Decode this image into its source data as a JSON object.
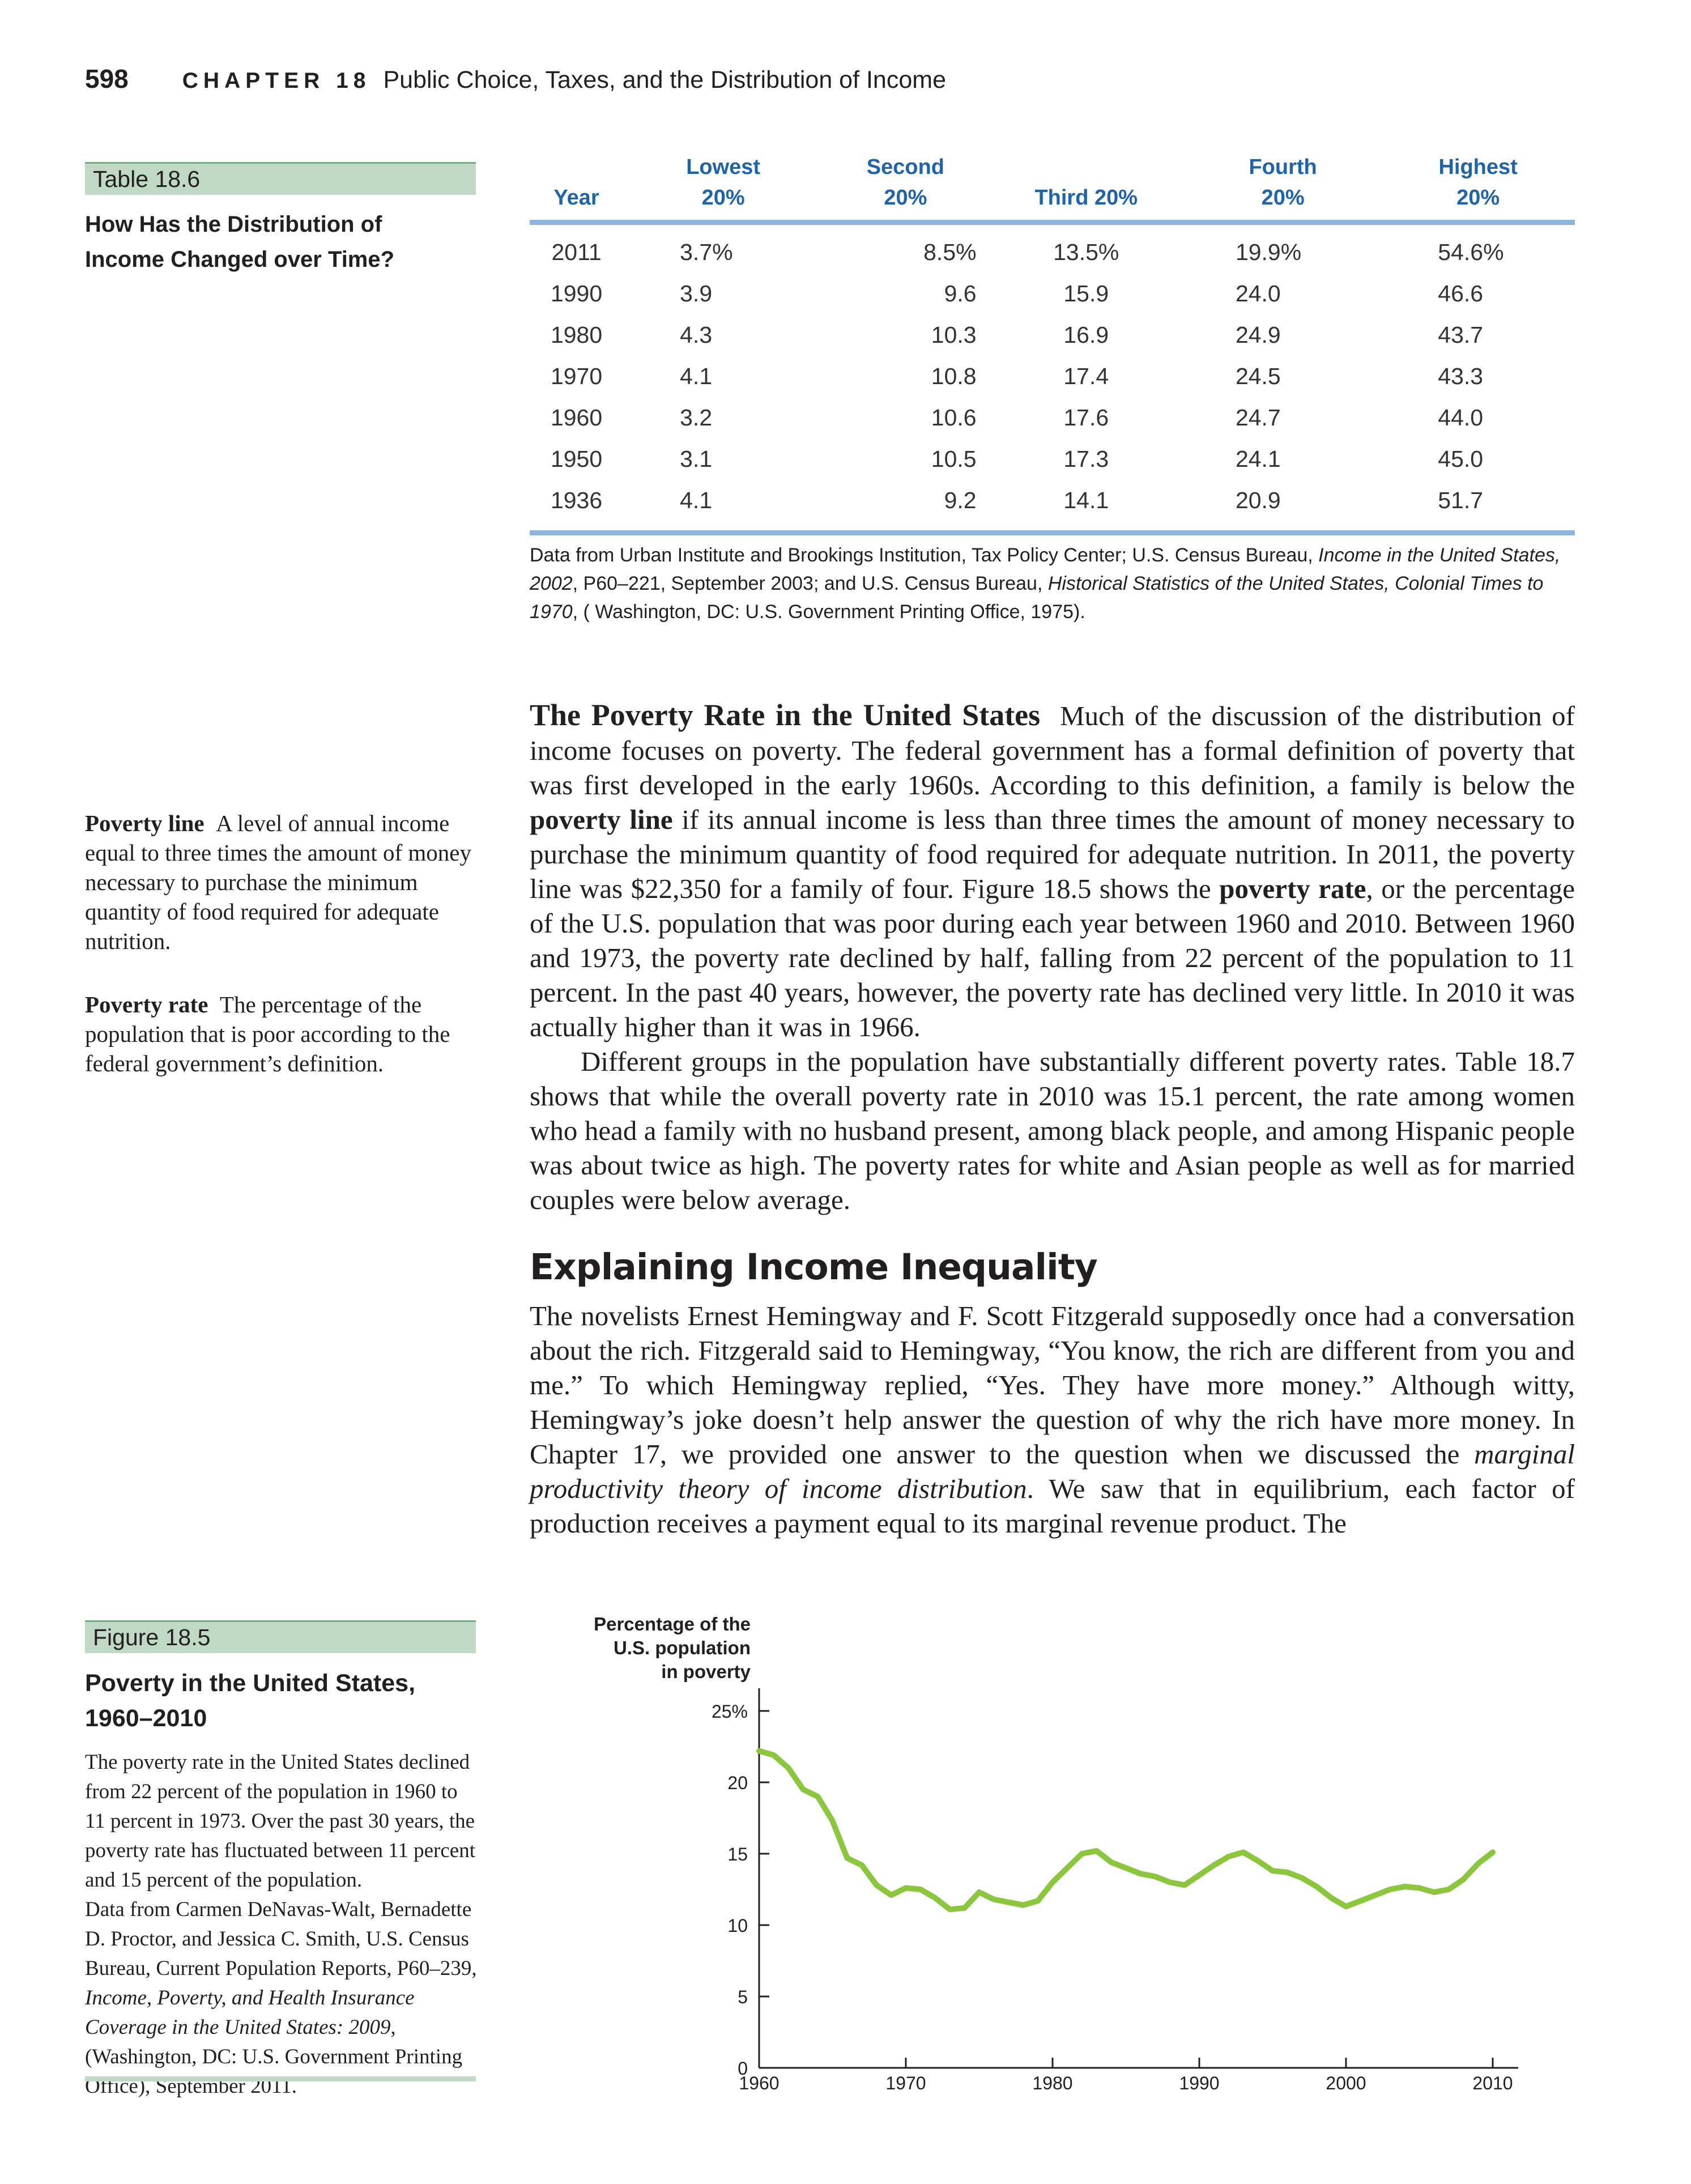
{
  "header": {
    "page_number": "598",
    "chapter_label": "CHAPTER 18",
    "chapter_title": "Public Choice, Taxes, and the Distribution of Income"
  },
  "table": {
    "label": "Table 18.6",
    "title_line1": "How Has the Distribution of",
    "title_line2": "Income Changed over Time?",
    "columns": [
      {
        "line1": "",
        "line2": "Year"
      },
      {
        "line1": "Lowest",
        "line2": "20%"
      },
      {
        "line1": "Second",
        "line2": "20%"
      },
      {
        "line1": "",
        "line2": "Third 20%"
      },
      {
        "line1": "Fourth",
        "line2": "20%"
      },
      {
        "line1": "Highest",
        "line2": "20%"
      }
    ],
    "rows": [
      [
        "2011",
        "3.7%",
        "8.5%",
        "13.5%",
        "19.9%",
        "54.6%"
      ],
      [
        "1990",
        "3.9",
        "9.6",
        "15.9",
        "24.0",
        "46.6"
      ],
      [
        "1980",
        "4.3",
        "10.3",
        "16.9",
        "24.9",
        "43.7"
      ],
      [
        "1970",
        "4.1",
        "10.8",
        "17.4",
        "24.5",
        "43.3"
      ],
      [
        "1960",
        "3.2",
        "10.6",
        "17.6",
        "24.7",
        "44.0"
      ],
      [
        "1950",
        "3.1",
        "10.5",
        "17.3",
        "24.1",
        "45.0"
      ],
      [
        "1936",
        "4.1",
        "9.2",
        "14.1",
        "20.9",
        "51.7"
      ]
    ],
    "source": {
      "p1": "Data from Urban Institute and Brookings Institution, Tax Policy Center; U.S. Census Bureau, ",
      "i1": "Income in the United States, 2002",
      "p2": ", P60–221, September 2003; and U.S. Census Bureau, ",
      "i2": "Historical Statistics of the United States, Colonial Times to 1970",
      "p3": ", ( Washington, DC: U.S. Government Printing Office, 1975)."
    }
  },
  "definitions": {
    "poverty_line_term": "Poverty line",
    "poverty_line_text": "A level of annual income equal to three times the amount of money necessary to purchase the minimum quantity of food required for adequate nutrition.",
    "poverty_rate_term": "Poverty rate",
    "poverty_rate_text": "The percentage of the population that is poor according to the federal government’s definition."
  },
  "poverty_section": {
    "heading": "The Poverty Rate in the United States",
    "p1_a": "Much of the discussion of the distribution of income focuses on poverty. The federal government has a formal definition of poverty that was first developed in the early 1960s. According to this definition, a family is below the ",
    "p1_b": "poverty line",
    "p1_c": " if its annual income is less than three times the amount of money necessary to purchase the minimum quantity of food required for adequate nutrition. In 2011, the poverty line was $22,350 for a family of four. Figure 18.5 shows the ",
    "p1_d": "poverty rate",
    "p1_e": ", or the percentage of the U.S. population that was poor during each year between 1960 and 2010. Between 1960 and 1973, the poverty rate declined by half, falling from 22 percent of the population to 11 percent. In the past 40 years, however, the poverty rate has declined very little. In 2010 it was actually higher than it was in 1966.",
    "p2": "Different groups in the population have substantially different poverty rates. Table 18.7 shows that while the overall poverty rate in 2010 was 15.1 percent, the rate among women who head a family with no husband present, among black people, and among Hispanic people was about twice as high. The poverty rates for white and Asian people as well as for married couples were below average."
  },
  "inequality_section": {
    "heading": "Explaining Income Inequality",
    "p_a": "The novelists Ernest Hemingway and F. Scott Fitzgerald supposedly once had a conversation about the rich. Fitzgerald said to Hemingway, “You know, the rich are different from you and me.” To which Hemingway replied, “Yes. They have more money.” Although witty, Hemingway’s joke doesn’t help answer the question of why the rich have more money. In Chapter 17, we provided one answer to the question when we discussed the ",
    "p_italic": "marginal productivity theory of income distribution",
    "p_b": ". We saw that in equilibrium, each factor of production receives a payment equal to its marginal revenue product. The"
  },
  "figure": {
    "label": "Figure 18.5",
    "title_line1": "Poverty in the United States,",
    "title_line2": "1960–2010",
    "caption": "The poverty rate in the United States declined from 22 percent of the population in 1960 to 11 percent in 1973. Over the past 30 years, the poverty rate has fluctuated between 11 percent and 15 percent of the population.",
    "source_a": "Data from Carmen DeNavas-Walt, Bernadette D. Proctor, and Jessica C. Smith, U.S. Census Bureau, Current Population Reports, P60–239, ",
    "source_italic": "Income, Poverty, and Health Insurance Coverage in the United States: 2009",
    "source_b": ", (Washington, DC: U.S. Government Printing Office), September 2011."
  },
  "chart_data": {
    "type": "line",
    "ylabel_lines": [
      "Percentage of the",
      "U.S. population",
      "in poverty"
    ],
    "xlim": [
      1960,
      2010
    ],
    "ylim": [
      0,
      25
    ],
    "x_ticks": [
      "1960",
      "1970",
      "1980",
      "1990",
      "2000",
      "2010"
    ],
    "y_ticks": [
      "0",
      "5",
      "10",
      "15",
      "20",
      "25%"
    ],
    "line_color": "#8cc63f",
    "grid": false,
    "x": [
      1960,
      1961,
      1962,
      1963,
      1964,
      1965,
      1966,
      1967,
      1968,
      1969,
      1970,
      1971,
      1972,
      1973,
      1974,
      1975,
      1976,
      1977,
      1978,
      1979,
      1980,
      1981,
      1982,
      1983,
      1984,
      1985,
      1986,
      1987,
      1988,
      1989,
      1990,
      1991,
      1992,
      1993,
      1994,
      1995,
      1996,
      1997,
      1998,
      1999,
      2000,
      2001,
      2002,
      2003,
      2004,
      2005,
      2006,
      2007,
      2008,
      2009,
      2010
    ],
    "y": [
      22.2,
      21.9,
      21.0,
      19.5,
      19.0,
      17.3,
      14.7,
      14.2,
      12.8,
      12.1,
      12.6,
      12.5,
      11.9,
      11.1,
      11.2,
      12.3,
      11.8,
      11.6,
      11.4,
      11.7,
      13.0,
      14.0,
      15.0,
      15.2,
      14.4,
      14.0,
      13.6,
      13.4,
      13.0,
      12.8,
      13.5,
      14.2,
      14.8,
      15.1,
      14.5,
      13.8,
      13.7,
      13.3,
      12.7,
      11.9,
      11.3,
      11.7,
      12.1,
      12.5,
      12.7,
      12.6,
      12.3,
      12.5,
      13.2,
      14.3,
      15.1
    ]
  }
}
